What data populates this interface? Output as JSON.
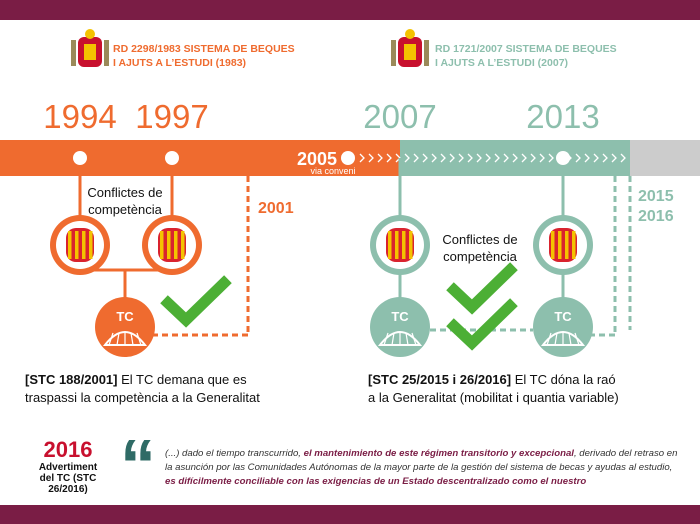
{
  "headers": [
    {
      "line1": "RD 2298/1983 SISTEMA DE BEQUES",
      "line2": "I AJUTS A L’ESTUDI (1983)"
    },
    {
      "line1": "RD 1721/2007 SISTEMA DE BEQUES",
      "line2": "I AJUTS A L’ESTUDI (2007)"
    }
  ],
  "years": [
    "1994",
    "1997",
    "2007",
    "2013"
  ],
  "timeline": {
    "year": "2005",
    "note": "via conveni"
  },
  "left": {
    "conflict": [
      "Conflictes de",
      "competència"
    ],
    "year": "2001",
    "lead": "[STC 188/2001]",
    "text1": " El TC demana que es",
    "text2": "traspassi la competència a la Generalitat"
  },
  "right": {
    "conflict": [
      "Conflictes de",
      "competència"
    ],
    "years": [
      "2015",
      "2016"
    ],
    "lead": "[STC 25/2015 i 26/2016]",
    "text1": " El TC dóna la raó",
    "text2": "a la Generalitat (mobilitat i quantia variable)"
  },
  "badge": "TC",
  "footer": {
    "year": "2016",
    "caption": [
      "Advertiment",
      "del TC (STC",
      "26/2016)"
    ],
    "quote_mark": "“",
    "quote": [
      "(...) dado el tiempo transcurrido, ",
      "el mantenimiento de este régimen transitorio y excepcional",
      ", derivado del retraso en la asunción por las Comunidades Autónomas de la mayor parte de la gestión del sistema de becas y ayudas al estudio, ",
      "es difícilmente conciliable con las exigencias de un Estado descentralizado como el nuestro"
    ]
  }
}
